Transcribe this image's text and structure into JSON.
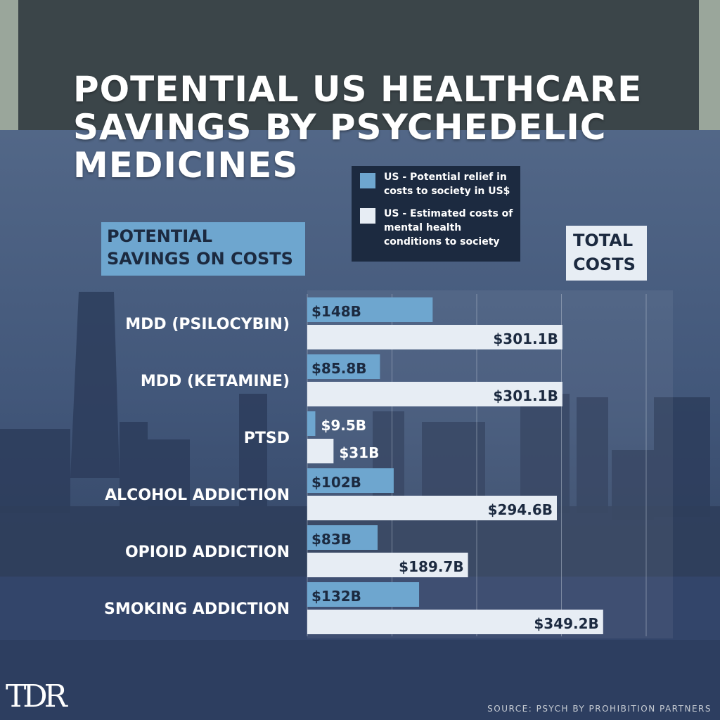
{
  "title": "POTENTIAL US HEALTHCARE SAVINGS BY PSYCHEDELIC MEDICINES",
  "headers": {
    "left": "POTENTIAL SAVINGS ON COSTS",
    "right": "TOTAL COSTS"
  },
  "source": "SOURCE: PSYCH BY PROHIBITION PARTNERS",
  "logo": "TDR",
  "colors": {
    "savings": "#6ea6cf",
    "total": "#e7edf4",
    "label_text": "#ffffff",
    "bar_text": "#1c2a40"
  },
  "chart_data": {
    "type": "bar",
    "orientation": "horizontal",
    "categories": [
      "MDD (PSILOCYBIN)",
      "MDD (KETAMINE)",
      "PTSD",
      "ALCOHOL ADDICTION",
      "OPIOID ADDICTION",
      "SMOKING ADDICTION"
    ],
    "series": [
      {
        "name": "US - Potential relief in costs to society in US$",
        "values": [
          148,
          85.8,
          9.5,
          102,
          83,
          132
        ],
        "labels": [
          "$148B",
          "$85.8B",
          "$9.5B",
          "$102B",
          "$83B",
          "$132B"
        ]
      },
      {
        "name": "US - Estimated costs of mental health conditions to society",
        "values": [
          301.1,
          301.1,
          31,
          294.6,
          189.7,
          349.2
        ],
        "labels": [
          "$301.1B",
          "$301.1B",
          "$31B",
          "$294.6B",
          "$189.7B",
          "$349.2B"
        ]
      }
    ],
    "unit": "billions US$",
    "grid": true,
    "legend_position": "top-right"
  }
}
